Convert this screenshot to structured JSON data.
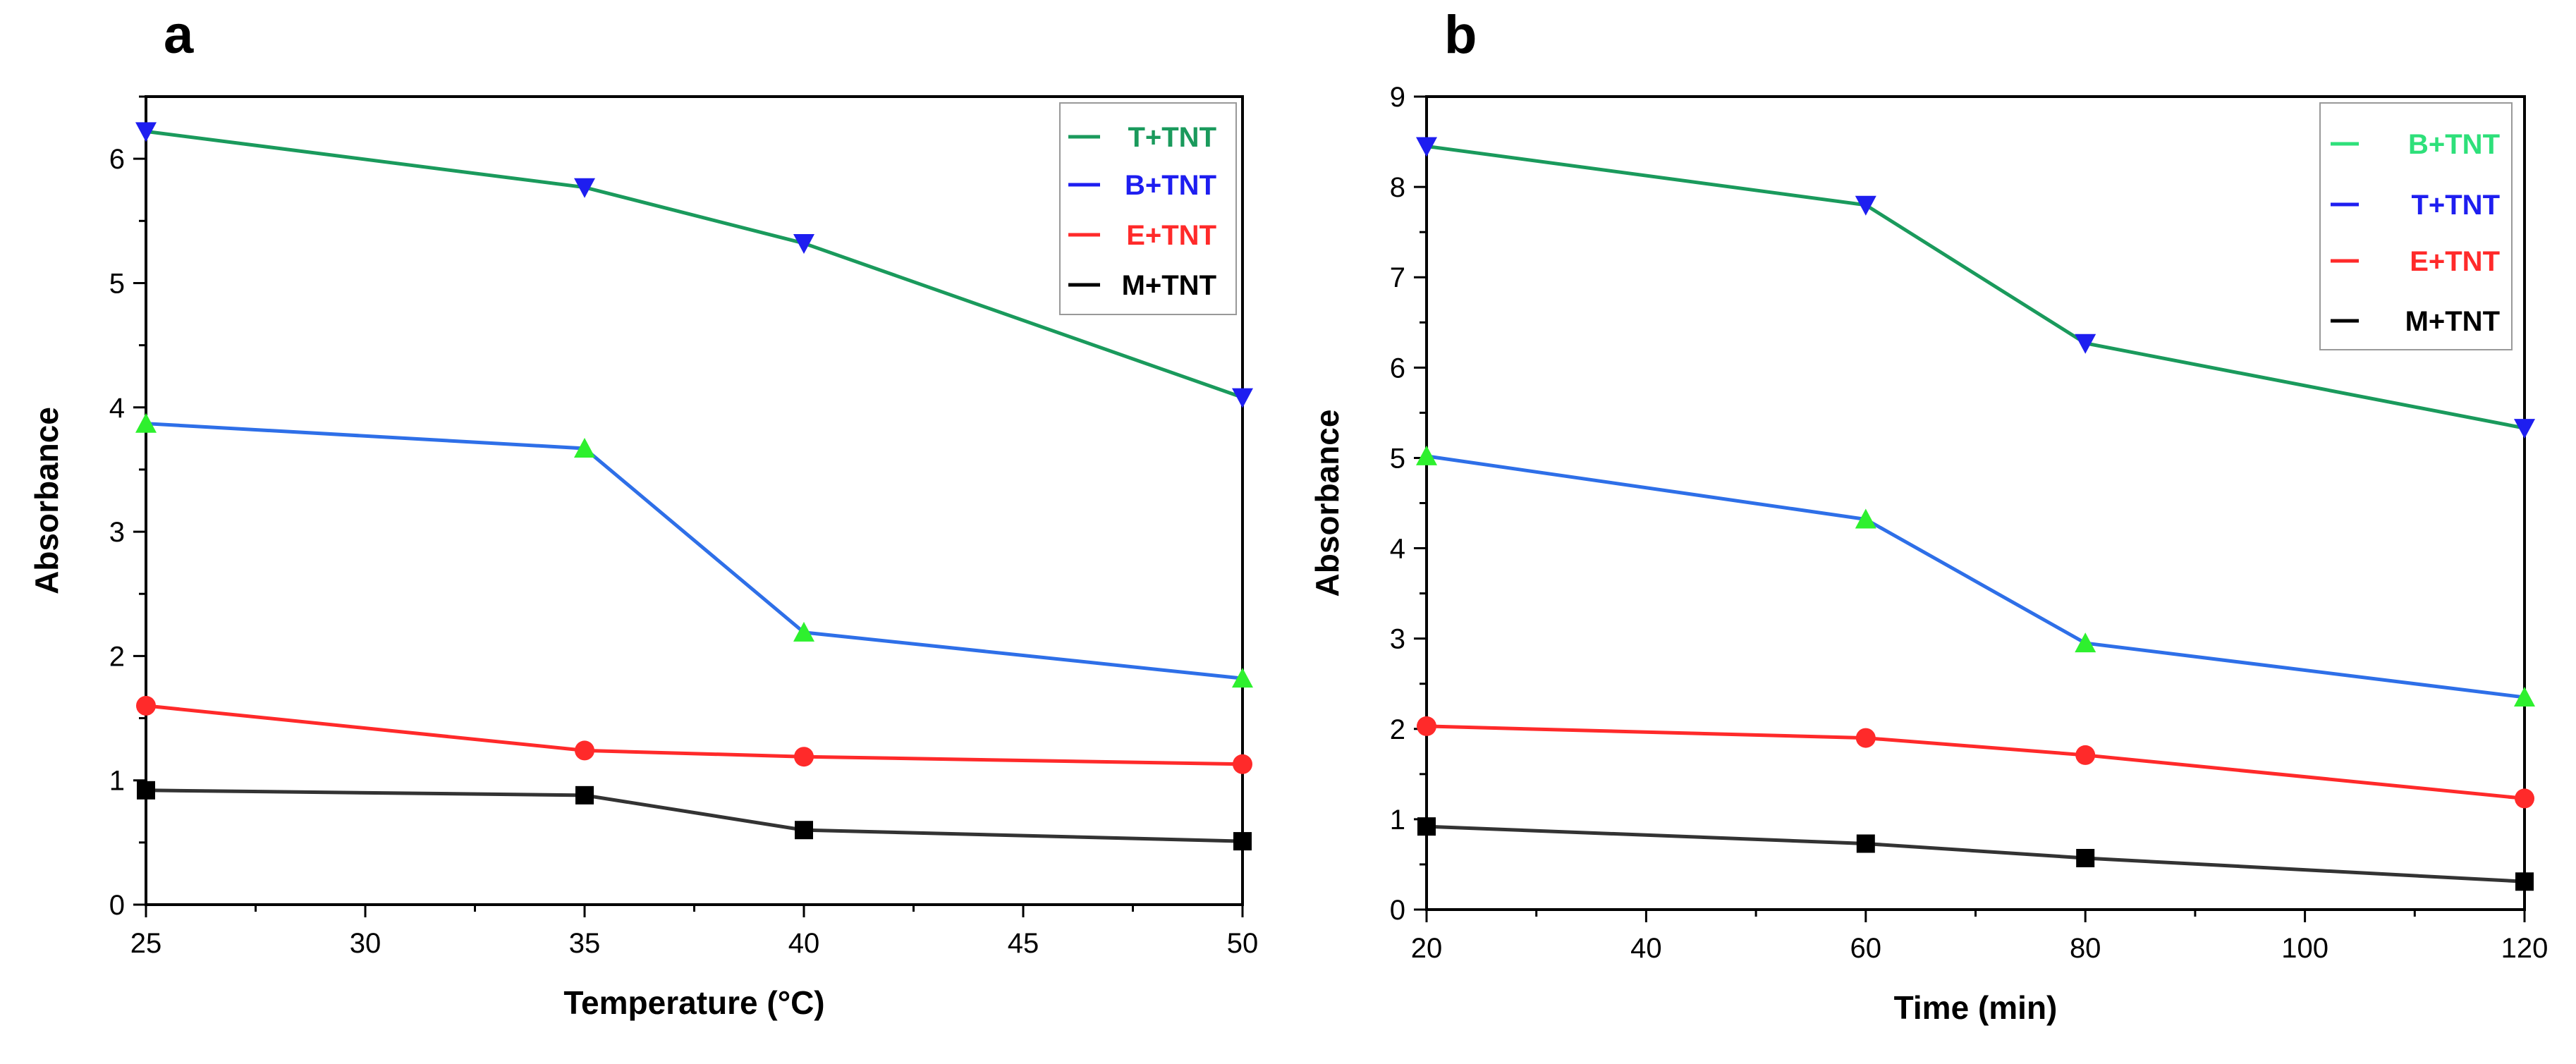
{
  "chart_data": [
    {
      "type": "line",
      "panel": "a",
      "xlabel": "Temperature (°C)",
      "ylabel": "Absorbance",
      "xlim": [
        25,
        50
      ],
      "ylim": [
        0,
        6.5
      ],
      "xticks": [
        25,
        30,
        35,
        40,
        45,
        50
      ],
      "yticks": [
        0,
        1,
        2,
        3,
        4,
        5,
        6
      ],
      "x": [
        25,
        35,
        40,
        50
      ],
      "legend_position": "top-right",
      "series": [
        {
          "name": "T+TNT",
          "color": "#1a9a5c",
          "legend_color": "#1a9a5c",
          "marker": "triangle-down",
          "marker_color": "#1e1ef0",
          "values": [
            6.22,
            5.77,
            5.32,
            4.08
          ]
        },
        {
          "name": "B+TNT",
          "color": "#2e6fe8",
          "legend_color": "#1e1ef0",
          "marker": "triangle-up",
          "marker_color": "#2ef02e",
          "values": [
            3.87,
            3.67,
            2.19,
            1.82
          ]
        },
        {
          "name": "E+TNT",
          "color": "#ff2a2a",
          "legend_color": "#ff2a2a",
          "marker": "circle",
          "marker_color": "#ff2a2a",
          "values": [
            1.6,
            1.24,
            1.19,
            1.13
          ]
        },
        {
          "name": "M+TNT",
          "color": "#333333",
          "legend_color": "#000000",
          "marker": "square",
          "marker_color": "#000000",
          "values": [
            0.92,
            0.88,
            0.6,
            0.51
          ]
        }
      ]
    },
    {
      "type": "line",
      "panel": "b",
      "xlabel": "Time (min)",
      "ylabel": "Absorbance",
      "xlim": [
        20,
        120
      ],
      "ylim": [
        0,
        9
      ],
      "xticks": [
        20,
        40,
        60,
        80,
        100,
        120
      ],
      "yticks": [
        0,
        1,
        2,
        3,
        4,
        5,
        6,
        7,
        8,
        9
      ],
      "x": [
        20,
        60,
        80,
        120
      ],
      "legend_position": "top-right",
      "series": [
        {
          "name": "B+TNT",
          "color": "#1a9a5c",
          "legend_color": "#2ee07a",
          "marker": "triangle-down",
          "marker_color": "#1e1ef0",
          "values": [
            8.45,
            7.8,
            6.27,
            5.33
          ]
        },
        {
          "name": "T+TNT",
          "color": "#2e6fe8",
          "legend_color": "#1e1ef0",
          "marker": "triangle-up",
          "marker_color": "#2ef02e",
          "values": [
            5.02,
            4.32,
            2.95,
            2.35
          ]
        },
        {
          "name": "E+TNT",
          "color": "#ff2a2a",
          "legend_color": "#ff2a2a",
          "marker": "circle",
          "marker_color": "#ff2a2a",
          "values": [
            2.03,
            1.9,
            1.71,
            1.23
          ]
        },
        {
          "name": "M+TNT",
          "color": "#333333",
          "legend_color": "#000000",
          "marker": "square",
          "marker_color": "#000000",
          "values": [
            0.92,
            0.73,
            0.57,
            0.31
          ]
        }
      ]
    }
  ]
}
